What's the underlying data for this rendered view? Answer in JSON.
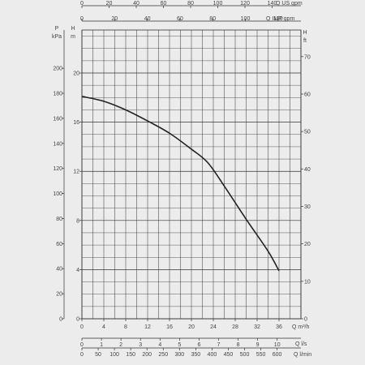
{
  "chart_data": {
    "type": "line",
    "title": "",
    "x": [
      0,
      4,
      8,
      12,
      16,
      20,
      23,
      26,
      30,
      34,
      36
    ],
    "series": [
      {
        "values": [
          18.1,
          17.7,
          17.0,
          16.1,
          15.1,
          13.8,
          12.7,
          10.8,
          8.1,
          5.5,
          3.9
        ]
      }
    ],
    "xlim": [
      0,
      40
    ],
    "ylim": [
      0,
      22
    ],
    "grid": true,
    "axes": {
      "us_gpm": {
        "label": "Q US gpm",
        "ticks": [
          "0",
          "20",
          "40",
          "60",
          "80",
          "100",
          "120",
          "140"
        ]
      },
      "imp_gpm": {
        "label": "Q IMP gpm",
        "ticks": [
          "0",
          "20",
          "40",
          "60",
          "80",
          "100",
          "120"
        ]
      },
      "m3h": {
        "label": "Q m³/h",
        "ticks": [
          "0",
          "4",
          "8",
          "12",
          "16",
          "20",
          "24",
          "28",
          "32",
          "36"
        ]
      },
      "ls": {
        "label": "Q l/s",
        "ticks": [
          "0",
          "1",
          "2",
          "3",
          "4",
          "5",
          "6",
          "7",
          "8",
          "9",
          "10"
        ]
      },
      "lmin": {
        "label": "Q l/min",
        "ticks": [
          "0",
          "50",
          "100",
          "150",
          "200",
          "250",
          "300",
          "350",
          "400",
          "450",
          "500",
          "550",
          "600"
        ]
      },
      "kpa": {
        "label_top": "P",
        "label_bottom": "kPa",
        "ticks": [
          "0",
          "20",
          "40",
          "60",
          "80",
          "100",
          "120",
          "140",
          "160",
          "180",
          "200"
        ]
      },
      "h_m": {
        "label_top": "H",
        "label_bottom": "m",
        "ticks": [
          "0",
          "4",
          "8",
          "12",
          "16",
          "20"
        ]
      },
      "h_ft": {
        "label_top": "H",
        "label_bottom": "ft",
        "ticks": [
          "0",
          "10",
          "20",
          "30",
          "40",
          "50",
          "60",
          "70"
        ]
      }
    },
    "colors": {
      "curve": "#222222",
      "grid": "#333333",
      "text": "#444444",
      "background": "#ececec"
    }
  }
}
